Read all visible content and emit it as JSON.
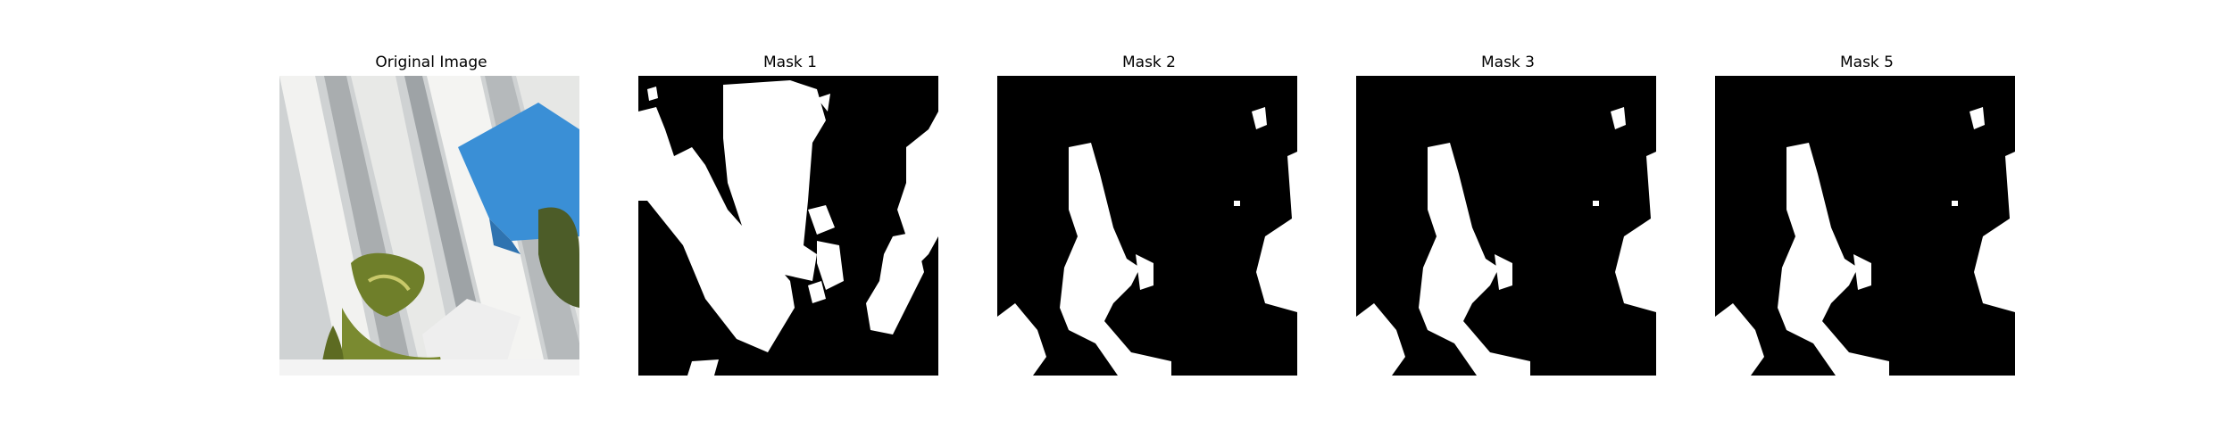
{
  "figure": {
    "panels": [
      {
        "id": "original",
        "title": "Original Image"
      },
      {
        "id": "mask-1",
        "title": "Mask 1"
      },
      {
        "id": "mask-2",
        "title": "Mask 2"
      },
      {
        "id": "mask-3",
        "title": "Mask 3"
      },
      {
        "id": "mask-5",
        "title": "Mask 5"
      }
    ]
  },
  "colors": {
    "mask_background": "#000000",
    "mask_foreground": "#ffffff",
    "sticky_note": "#3a8fd6",
    "leaf": "#6f7f2a"
  }
}
